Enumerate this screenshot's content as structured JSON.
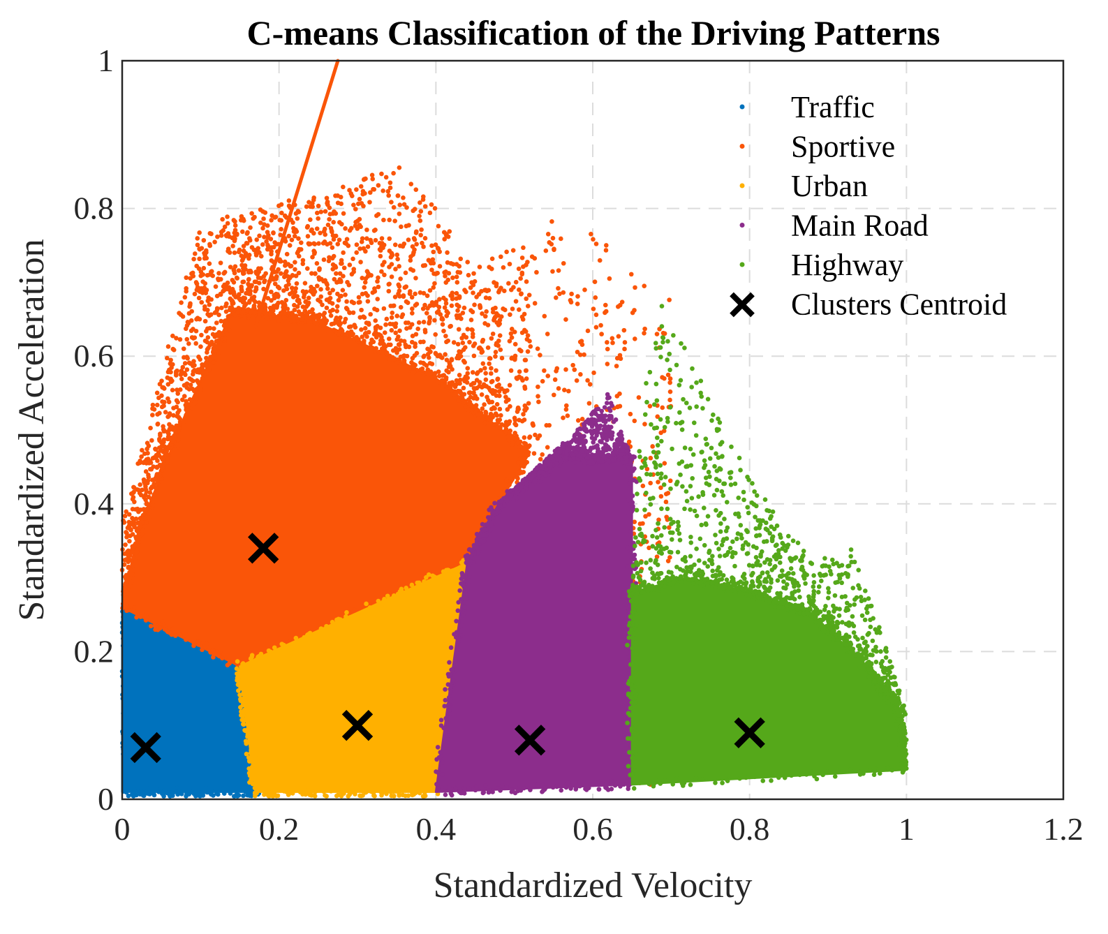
{
  "chart_data": {
    "type": "scatter",
    "title": "C-means Classification of the Driving Patterns",
    "xlabel": "Standardized Velocity",
    "ylabel": "Standardized Acceleration",
    "xlim": [
      0,
      1.2
    ],
    "ylim": [
      0,
      1
    ],
    "xticks": [
      {
        "value": 0,
        "label": "0"
      },
      {
        "value": 0.2,
        "label": "0.2"
      },
      {
        "value": 0.4,
        "label": "0.4"
      },
      {
        "value": 0.6,
        "label": "0.6"
      },
      {
        "value": 0.8,
        "label": "0.8"
      },
      {
        "value": 1,
        "label": "1"
      },
      {
        "value": 1.2,
        "label": "1.2"
      }
    ],
    "yticks": [
      {
        "value": 0,
        "label": "0"
      },
      {
        "value": 0.2,
        "label": "0.2"
      },
      {
        "value": 0.4,
        "label": "0.4"
      },
      {
        "value": 0.6,
        "label": "0.6"
      },
      {
        "value": 0.8,
        "label": "0.8"
      },
      {
        "value": 1,
        "label": "1"
      }
    ],
    "grid": true,
    "legend_position": "top-right",
    "series": [
      {
        "name": "Traffic",
        "color": "#0072BD",
        "region": [
          [
            0.0,
            0.01
          ],
          [
            0.17,
            0.01
          ],
          [
            0.15,
            0.18
          ],
          [
            0.0,
            0.26
          ]
        ],
        "top_envelope": []
      },
      {
        "name": "Sportive",
        "color": "#FA5508",
        "region": [
          [
            0.0,
            0.26
          ],
          [
            0.15,
            0.18
          ],
          [
            0.44,
            0.32
          ],
          [
            0.48,
            0.4
          ],
          [
            0.52,
            0.47
          ],
          [
            0.4,
            0.57
          ],
          [
            0.24,
            0.65
          ],
          [
            0.14,
            0.66
          ],
          [
            0.08,
            0.52
          ],
          [
            0.02,
            0.36
          ]
        ],
        "top_envelope": [
          [
            0.0,
            0.38
          ],
          [
            0.05,
            0.58
          ],
          [
            0.1,
            0.78
          ],
          [
            0.16,
            0.8
          ],
          [
            0.25,
            0.82
          ],
          [
            0.35,
            0.86
          ],
          [
            0.4,
            0.8
          ],
          [
            0.45,
            0.72
          ],
          [
            0.5,
            0.75
          ],
          [
            0.55,
            0.79
          ],
          [
            0.6,
            0.78
          ],
          [
            0.65,
            0.71
          ],
          [
            0.7,
            0.68
          ],
          [
            0.64,
            0.54
          ],
          [
            0.58,
            0.5
          ],
          [
            0.52,
            0.47
          ]
        ],
        "streak": [
          [
            0.17,
            0.64
          ],
          [
            0.275,
            1.0
          ]
        ]
      },
      {
        "name": "Urban",
        "color": "#FFB000",
        "region": [
          [
            0.15,
            0.18
          ],
          [
            0.44,
            0.32
          ],
          [
            0.4,
            0.01
          ],
          [
            0.17,
            0.01
          ]
        ],
        "top_envelope": []
      },
      {
        "name": "Main Road",
        "color": "#8C2D8C",
        "region": [
          [
            0.4,
            0.01
          ],
          [
            0.44,
            0.32
          ],
          [
            0.48,
            0.4
          ],
          [
            0.56,
            0.46
          ],
          [
            0.65,
            0.46
          ],
          [
            0.65,
            0.02
          ]
        ],
        "top_envelope": [
          [
            0.48,
            0.4
          ],
          [
            0.54,
            0.46
          ],
          [
            0.58,
            0.5
          ],
          [
            0.62,
            0.55
          ],
          [
            0.65,
            0.46
          ]
        ]
      },
      {
        "name": "Highway",
        "color": "#55A81A",
        "region": [
          [
            0.65,
            0.02
          ],
          [
            1.0,
            0.04
          ],
          [
            0.99,
            0.12
          ],
          [
            0.95,
            0.18
          ],
          [
            0.88,
            0.25
          ],
          [
            0.8,
            0.28
          ],
          [
            0.72,
            0.3
          ],
          [
            0.65,
            0.28
          ]
        ],
        "top_envelope": [
          [
            0.65,
            0.28
          ],
          [
            0.66,
            0.5
          ],
          [
            0.68,
            0.68
          ],
          [
            0.72,
            0.62
          ],
          [
            0.76,
            0.52
          ],
          [
            0.8,
            0.44
          ],
          [
            0.84,
            0.38
          ],
          [
            0.88,
            0.32
          ],
          [
            0.93,
            0.34
          ],
          [
            0.97,
            0.22
          ],
          [
            1.0,
            0.12
          ]
        ]
      }
    ],
    "centroids": [
      {
        "cluster": "Traffic",
        "x": 0.03,
        "y": 0.07
      },
      {
        "cluster": "Sportive",
        "x": 0.18,
        "y": 0.34
      },
      {
        "cluster": "Urban",
        "x": 0.3,
        "y": 0.1
      },
      {
        "cluster": "Main Road",
        "x": 0.52,
        "y": 0.08
      },
      {
        "cluster": "Highway",
        "x": 0.8,
        "y": 0.09
      }
    ],
    "legend": [
      {
        "label": "Traffic",
        "color": "#0072BD",
        "marker": "dot"
      },
      {
        "label": "Sportive",
        "color": "#FA5508",
        "marker": "dot"
      },
      {
        "label": "Urban",
        "color": "#FFB000",
        "marker": "dot"
      },
      {
        "label": "Main Road",
        "color": "#8C2D8C",
        "marker": "dot"
      },
      {
        "label": "Highway",
        "color": "#55A81A",
        "marker": "dot"
      },
      {
        "label": "Clusters Centroid",
        "color": "#000000",
        "marker": "x"
      }
    ]
  }
}
